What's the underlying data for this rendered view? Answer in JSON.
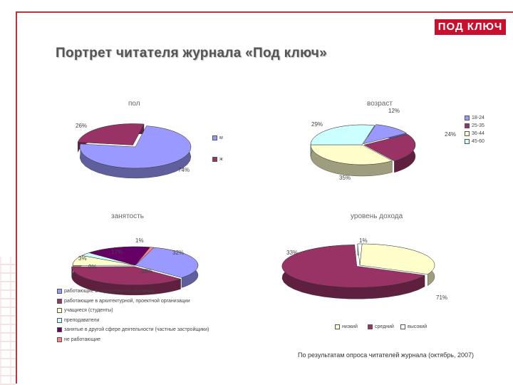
{
  "logo_text": "ПОД КЛЮЧ",
  "page_title": "Портрет читателя журнала «Под ключ»",
  "footnote": "По результатам опроса читателей журнала (октябрь, 2007)",
  "chart_data": [
    {
      "type": "pie",
      "title": "пол",
      "categories": [
        "м",
        "ж"
      ],
      "values": [
        74,
        26
      ],
      "labels": [
        "74%",
        "26%"
      ],
      "colors": [
        "#9999ff",
        "#993366"
      ],
      "legend": "right"
    },
    {
      "type": "pie",
      "title": "возраст",
      "categories": [
        "18-24",
        "25-35",
        "36-44",
        "45-60"
      ],
      "values": [
        12,
        24,
        35,
        29
      ],
      "labels": [
        "12%",
        "24%",
        "35%",
        "29%"
      ],
      "colors": [
        "#9999ff",
        "#993366",
        "#ffffcc",
        "#ccffff"
      ],
      "legend": "right"
    },
    {
      "type": "pie",
      "title": "занятость",
      "categories": [
        "работающие в строительной компании",
        "работающие в архитектурной, проектной организации",
        "учащиеся (студенты)",
        "преподаватели",
        "занятые в другой сфере деятельности (частные застройщики)",
        "не работающие"
      ],
      "values": [
        32,
        38,
        9,
        3,
        17,
        1
      ],
      "labels": [
        "32%",
        "38%",
        "9%",
        "3%",
        "17%",
        "1%"
      ],
      "colors": [
        "#9999ff",
        "#993366",
        "#ffffcc",
        "#ccffff",
        "#660066",
        "#ff8080"
      ],
      "legend": "bottom"
    },
    {
      "type": "pie",
      "title": "уровень дохода",
      "categories": [
        "низкий",
        "средний",
        "высокий"
      ],
      "values": [
        33,
        71,
        1
      ],
      "labels": [
        "33%",
        "71%",
        "1%"
      ],
      "colors": [
        "#ffffcc",
        "#993366",
        "#ffffff"
      ],
      "legend": "bottom"
    }
  ]
}
